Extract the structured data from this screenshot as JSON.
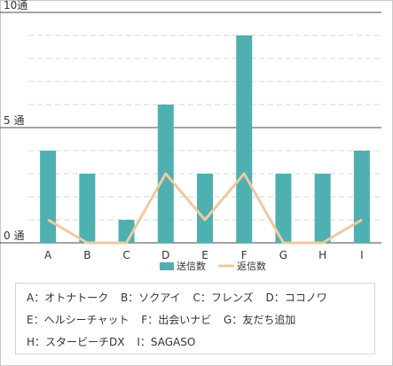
{
  "chart_data": {
    "type": "bar",
    "categories": [
      "A",
      "B",
      "C",
      "D",
      "E",
      "F",
      "G",
      "H",
      "I"
    ],
    "series": [
      {
        "name": "送信数",
        "type": "bar",
        "color": "#4fb0b2",
        "values": [
          4,
          3,
          1,
          6,
          3,
          9,
          3,
          3,
          4
        ]
      },
      {
        "name": "返信数",
        "type": "line",
        "color": "#f0c9a0",
        "values": [
          1,
          0,
          0,
          3,
          1,
          3,
          0,
          0,
          1
        ]
      }
    ],
    "y_ticks": [
      {
        "value": 10,
        "label": "10通"
      },
      {
        "value": 5,
        "label": "5 通"
      },
      {
        "value": 0,
        "label": "0 通"
      }
    ],
    "ylim": [
      0,
      10
    ],
    "grid": true,
    "legend_position": "bottom"
  },
  "key": {
    "lines": [
      [
        "A：オトナトーク",
        "B：ソクアイ",
        "C：フレンズ",
        "D：ココノワ"
      ],
      [
        "E：ヘルシーチャット",
        "F：出会いナビ",
        "G：友だち追加"
      ],
      [
        "H：スタービーチDX",
        "I：SAGASO"
      ]
    ]
  }
}
